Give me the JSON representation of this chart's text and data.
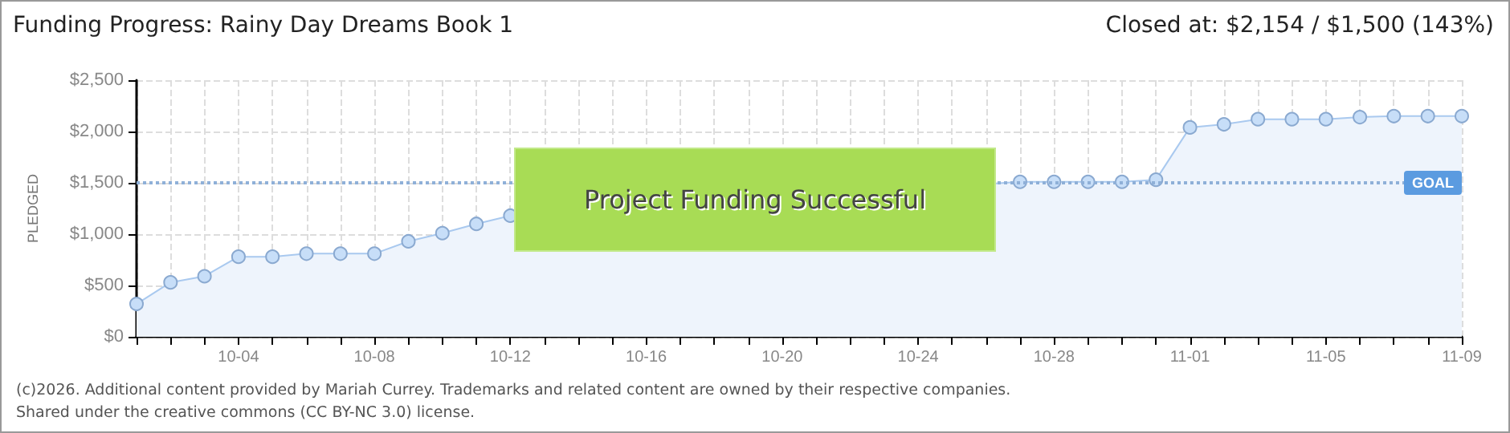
{
  "chart_data": {
    "type": "area",
    "title": "Funding Progress: Rainy Day Dreams Book 1",
    "subtitle": "Closed at: $2,154 / $1,500 (143%)",
    "ylabel": "PLEDGED",
    "annotations": [
      "Project Funding Successful",
      "(c)2026. Additional content provided by Mariah Currey. Trademarks and related content are owned by their respective companies.",
      "Shared under the creative commons (CC BY-NC 3.0) license."
    ],
    "x": [
      "--10-01",
      "--10-02",
      "--10-03",
      "--10-04",
      "--10-05",
      "--10-06",
      "--10-07",
      "--10-08",
      "--10-09",
      "--10-10",
      "--10-11",
      "--10-12",
      "--10-13",
      "--10-14",
      "--10-15",
      "--10-16",
      "--10-17",
      "--10-18",
      "--10-19",
      "--10-20",
      "--10-21",
      "--10-22",
      "--10-23",
      "--10-24",
      "--10-25",
      "--10-26",
      "--10-27",
      "--10-28",
      "--10-29",
      "--10-30",
      "--10-31",
      "--11-01",
      "--11-02",
      "--11-03",
      "--11-04",
      "--11-05",
      "--11-06",
      "--11-07",
      "--11-08",
      "--11-09"
    ],
    "series": [
      {
        "color": "#a9c9ef",
        "values": [
          320,
          530,
          590,
          780,
          780,
          810,
          810,
          810,
          930,
          1010,
          1100,
          1180,
          null,
          null,
          null,
          null,
          null,
          null,
          null,
          null,
          null,
          null,
          null,
          null,
          null,
          null,
          1510,
          1510,
          1510,
          1510,
          1530,
          2040,
          2070,
          2120,
          2120,
          2120,
          2140,
          2150,
          2150,
          2150
        ]
      }
    ],
    "xlim": [
      "--10-01",
      "--11-09"
    ],
    "xticks": [
      {
        "value": "--10-01",
        "label": null
      },
      {
        "value": "--10-02",
        "label": null
      },
      {
        "value": "--10-03",
        "label": null
      },
      {
        "value": "--10-04",
        "label": "10-04"
      },
      {
        "value": "--10-05",
        "label": null
      },
      {
        "value": "--10-06",
        "label": null
      },
      {
        "value": "--10-07",
        "label": null
      },
      {
        "value": "--10-08",
        "label": "10-08"
      },
      {
        "value": "--10-09",
        "label": null
      },
      {
        "value": "--10-10",
        "label": null
      },
      {
        "value": "--10-11",
        "label": null
      },
      {
        "value": "--10-12",
        "label": "10-12"
      },
      {
        "value": "--10-13",
        "label": null
      },
      {
        "value": "--10-14",
        "label": null
      },
      {
        "value": "--10-15",
        "label": null
      },
      {
        "value": "--10-16",
        "label": "10-16"
      },
      {
        "value": "--10-17",
        "label": null
      },
      {
        "value": "--10-18",
        "label": null
      },
      {
        "value": "--10-19",
        "label": null
      },
      {
        "value": "--10-20",
        "label": "10-20"
      },
      {
        "value": "--10-21",
        "label": null
      },
      {
        "value": "--10-22",
        "label": null
      },
      {
        "value": "--10-23",
        "label": null
      },
      {
        "value": "--10-24",
        "label": "10-24"
      },
      {
        "value": "--10-25",
        "label": null
      },
      {
        "value": "--10-26",
        "label": null
      },
      {
        "value": "--10-27",
        "label": null
      },
      {
        "value": "--10-28",
        "label": "10-28"
      },
      {
        "value": "--10-29",
        "label": null
      },
      {
        "value": "--10-30",
        "label": null
      },
      {
        "value": "--10-31",
        "label": null
      },
      {
        "value": "--11-01",
        "label": "11-01"
      },
      {
        "value": "--11-02",
        "label": null
      },
      {
        "value": "--11-03",
        "label": null
      },
      {
        "value": "--11-04",
        "label": null
      },
      {
        "value": "--11-05",
        "label": "11-05"
      },
      {
        "value": "--11-06",
        "label": null
      },
      {
        "value": "--11-07",
        "label": null
      },
      {
        "value": "--11-08",
        "label": null
      },
      {
        "value": "--11-09",
        "label": "11-09"
      }
    ],
    "ylim": [
      0,
      2500
    ],
    "yticks": [
      {
        "value": 0,
        "label": "$0"
      },
      {
        "value": 500,
        "label": "$500"
      },
      {
        "value": 1000,
        "label": "$1,000"
      },
      {
        "value": 1500,
        "label": "$1,500"
      },
      {
        "value": 2000,
        "label": "$2,000"
      },
      {
        "value": 2500,
        "label": "$2,500"
      }
    ],
    "ref_lines": [
      {
        "axis": "y",
        "value": 1500,
        "label": "GOAL",
        "color": "#8fb0d8",
        "line_style": "dotted"
      }
    ],
    "grid": true,
    "marker": "circle"
  }
}
